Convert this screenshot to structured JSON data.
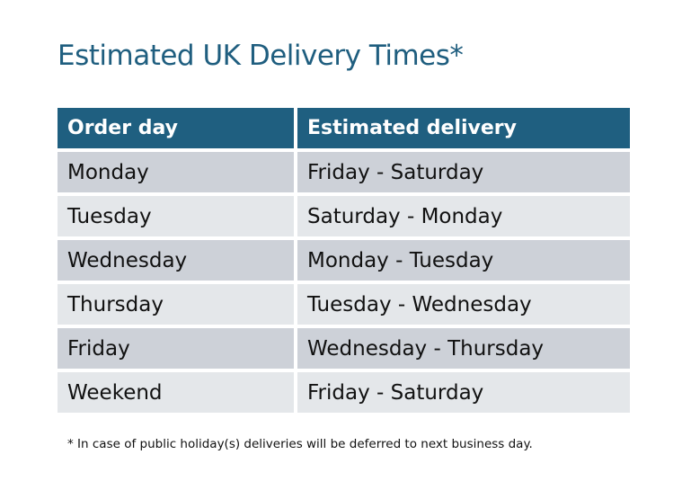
{
  "title": "Estimated UK Delivery Times*",
  "table": {
    "headers": [
      "Order day",
      "Estimated delivery"
    ],
    "rows": [
      [
        "Monday",
        "Friday - Saturday"
      ],
      [
        "Tuesday",
        "Saturday - Monday"
      ],
      [
        "Wednesday",
        "Monday - Tuesday"
      ],
      [
        "Thursday",
        "Tuesday - Wednesday"
      ],
      [
        "Friday",
        "Wednesday - Thursday"
      ],
      [
        "Weekend",
        "Friday - Saturday"
      ]
    ]
  },
  "footnote": "* In case of public holiday(s) deliveries will be deferred to next business day.",
  "colors": {
    "header": "#1f5f80",
    "row_dark": "#cdd1d8",
    "row_light": "#e4e7ea"
  }
}
